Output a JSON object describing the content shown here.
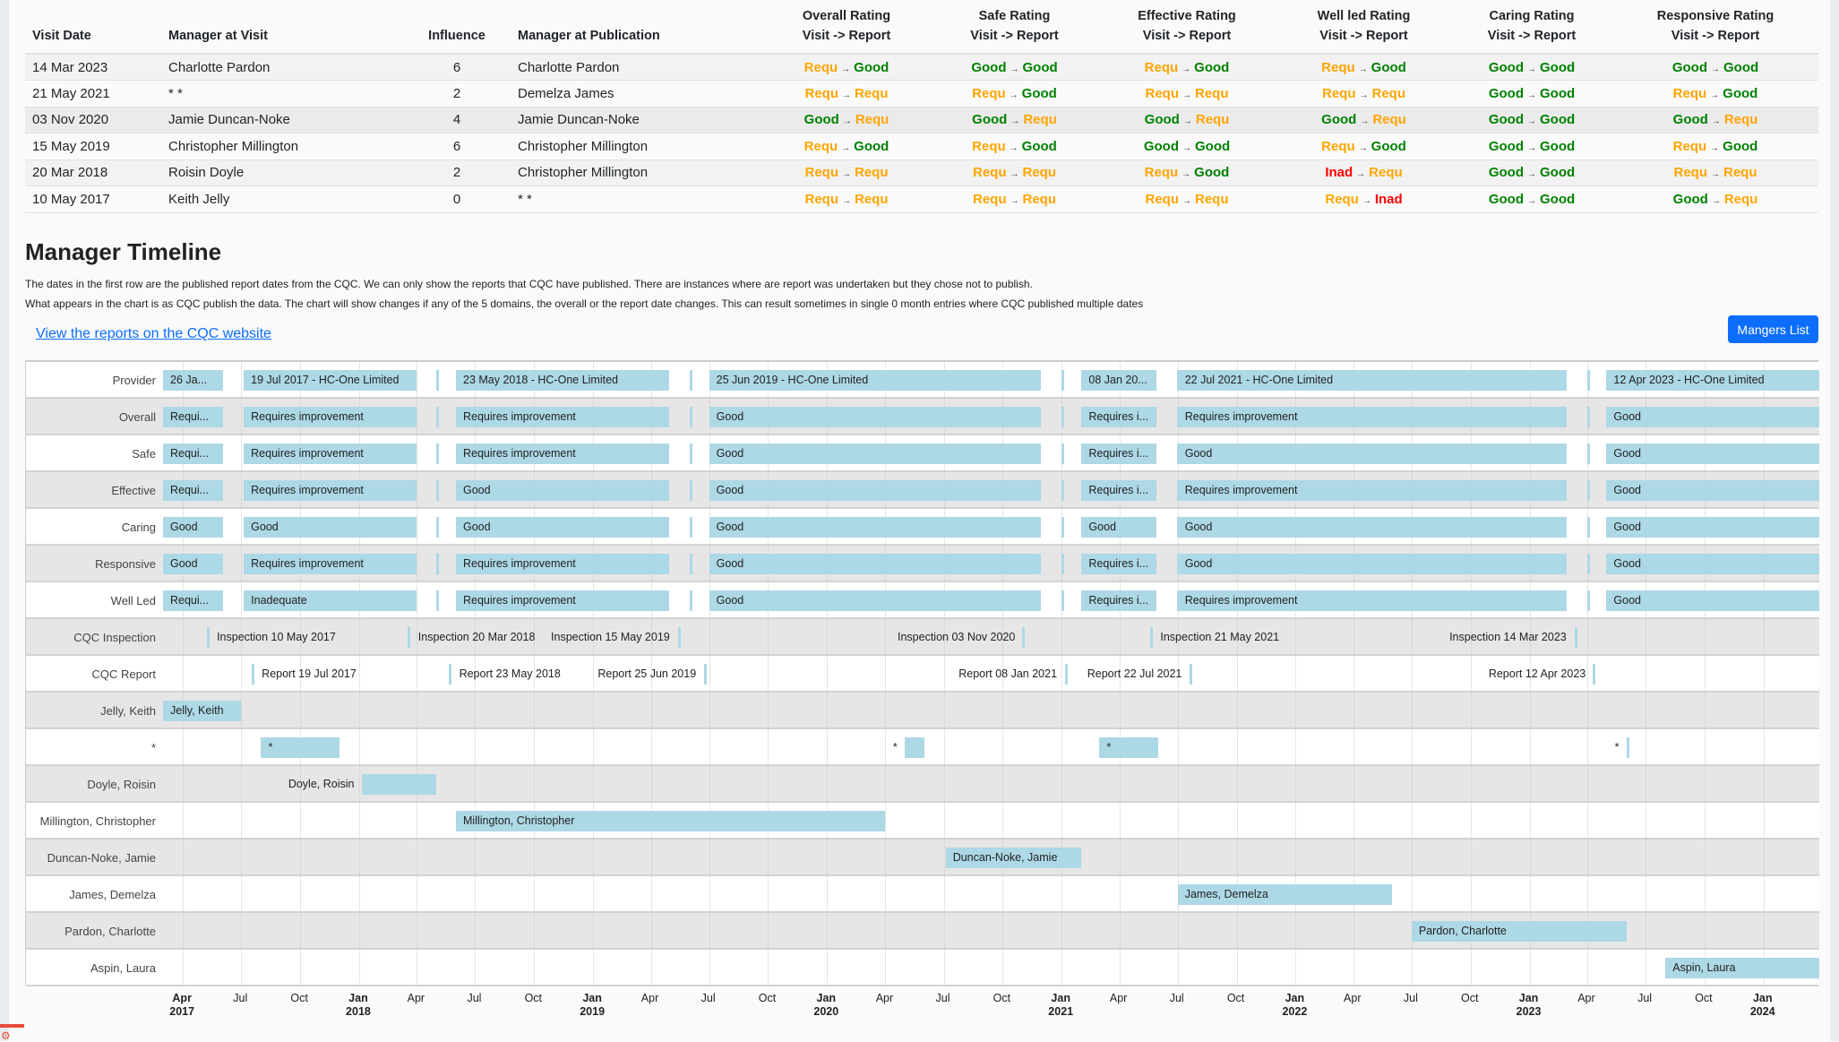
{
  "visits_table": {
    "headers": {
      "visit_date": "Visit Date",
      "manager_at_visit": "Manager at Visit",
      "influence": "Influence",
      "manager_at_publication": "Manager at Publication",
      "overall": [
        "Overall Rating",
        "Visit -> Report"
      ],
      "safe": [
        "Safe Rating",
        "Visit -> Report"
      ],
      "effective": [
        "Effective Rating",
        "Visit -> Report"
      ],
      "well_led": [
        "Well led Rating",
        "Visit -> Report"
      ],
      "caring": [
        "Caring Rating",
        "Visit -> Report"
      ],
      "responsive": [
        "Responsive Rating",
        "Visit -> Report"
      ]
    },
    "arrow": "→",
    "rows": [
      {
        "visit_date": "14 Mar 2023",
        "manager_at_visit": "Charlotte Pardon",
        "influence": "6",
        "manager_at_publication": "Charlotte Pardon",
        "overall": [
          "Requ",
          "Good"
        ],
        "safe": [
          "Good",
          "Good"
        ],
        "effective": [
          "Requ",
          "Good"
        ],
        "well_led": [
          "Requ",
          "Good"
        ],
        "caring": [
          "Good",
          "Good"
        ],
        "responsive": [
          "Good",
          "Good"
        ]
      },
      {
        "visit_date": "21 May 2021",
        "manager_at_visit": "* *",
        "influence": "2",
        "manager_at_publication": "Demelza James",
        "overall": [
          "Requ",
          "Requ"
        ],
        "safe": [
          "Requ",
          "Good"
        ],
        "effective": [
          "Requ",
          "Requ"
        ],
        "well_led": [
          "Requ",
          "Requ"
        ],
        "caring": [
          "Good",
          "Good"
        ],
        "responsive": [
          "Requ",
          "Good"
        ]
      },
      {
        "visit_date": "03 Nov 2020",
        "manager_at_visit": "Jamie Duncan-Noke",
        "influence": "4",
        "manager_at_publication": "Jamie Duncan-Noke",
        "overall": [
          "Good",
          "Requ"
        ],
        "safe": [
          "Good",
          "Requ"
        ],
        "effective": [
          "Good",
          "Requ"
        ],
        "well_led": [
          "Good",
          "Requ"
        ],
        "caring": [
          "Good",
          "Good"
        ],
        "responsive": [
          "Good",
          "Requ"
        ]
      },
      {
        "visit_date": "15 May 2019",
        "manager_at_visit": "Christopher Millington",
        "influence": "6",
        "manager_at_publication": "Christopher Millington",
        "overall": [
          "Requ",
          "Good"
        ],
        "safe": [
          "Requ",
          "Good"
        ],
        "effective": [
          "Good",
          "Good"
        ],
        "well_led": [
          "Requ",
          "Good"
        ],
        "caring": [
          "Good",
          "Good"
        ],
        "responsive": [
          "Requ",
          "Good"
        ]
      },
      {
        "visit_date": "20 Mar 2018",
        "manager_at_visit": "Roisin Doyle",
        "influence": "2",
        "manager_at_publication": "Christopher Millington",
        "overall": [
          "Requ",
          "Requ"
        ],
        "safe": [
          "Requ",
          "Requ"
        ],
        "effective": [
          "Requ",
          "Good"
        ],
        "well_led": [
          "Inad",
          "Requ"
        ],
        "caring": [
          "Good",
          "Good"
        ],
        "responsive": [
          "Requ",
          "Requ"
        ]
      },
      {
        "visit_date": "10 May 2017",
        "manager_at_visit": "Keith Jelly",
        "influence": "0",
        "manager_at_publication": "* *",
        "overall": [
          "Requ",
          "Requ"
        ],
        "safe": [
          "Requ",
          "Requ"
        ],
        "effective": [
          "Requ",
          "Requ"
        ],
        "well_led": [
          "Requ",
          "Inad"
        ],
        "caring": [
          "Good",
          "Good"
        ],
        "responsive": [
          "Good",
          "Requ"
        ]
      }
    ],
    "rating_colors": {
      "Requ": "#FFA500",
      "Good": "#008000",
      "Inad": "#FF0000"
    }
  },
  "timeline_section": {
    "title": "Manager Timeline",
    "note1": "The dates in the first row are the published report dates from the CQC. We can only show the reports that CQC have published. There are instances where are report was undertaken but they chose not to publish.",
    "note2": "What appears in the chart is as CQC publish the data. The chart will show changes if any of the 5 domains, the overall or the report date changes. This can result sometimes in single 0 month entries where CQC published multiple dates",
    "link_label": "View the reports on the CQC website",
    "managers_button": "Mangers List"
  },
  "chart_data": {
    "type": "timeline",
    "x_range": [
      "2017-03-01",
      "2024-03-28"
    ],
    "bar_color": "#ADD8E6",
    "periods": [
      [
        "2017-03-01",
        "2017-06-02"
      ],
      [
        "2017-07-05",
        "2018-03-31"
      ],
      [
        "2018-05-01",
        "2018-05-04"
      ],
      [
        "2018-06-01",
        "2019-04-30"
      ],
      [
        "2019-06-01",
        "2019-06-04"
      ],
      [
        "2019-07-01",
        "2020-11-30"
      ],
      [
        "2021-01-01",
        "2021-01-04"
      ],
      [
        "2021-02-01",
        "2021-05-29"
      ],
      [
        "2021-06-30",
        "2021-07-03"
      ],
      [
        "2021-07-01",
        "2023-02-28"
      ],
      [
        "2023-04-01",
        "2023-04-04"
      ],
      [
        "2023-05-01",
        "2024-03-28"
      ]
    ],
    "rating_rows": [
      {
        "label": "Provider",
        "values": [
          "26 Ja...",
          "19 Jul 2017 - HC-One Limited",
          "",
          "23 May 2018 - HC-One Limited",
          "",
          "25 Jun 2019 - HC-One Limited",
          "",
          "08 Jan 20...",
          "",
          "22 Jul 2021 - HC-One Limited",
          "",
          "12 Apr 2023 - HC-One Limited"
        ]
      },
      {
        "label": "Overall",
        "values": [
          "Requi...",
          "Requires improvement",
          "",
          "Requires improvement",
          "",
          "Good",
          "",
          "Requires i...",
          "",
          "Requires improvement",
          "",
          "Good"
        ]
      },
      {
        "label": "Safe",
        "values": [
          "Requi...",
          "Requires improvement",
          "",
          "Requires improvement",
          "",
          "Good",
          "",
          "Requires i...",
          "",
          "Good",
          "",
          "Good"
        ]
      },
      {
        "label": "Effective",
        "values": [
          "Requi...",
          "Requires improvement",
          "",
          "Good",
          "",
          "Good",
          "",
          "Requires i...",
          "",
          "Requires improvement",
          "",
          "Good"
        ]
      },
      {
        "label": "Caring",
        "values": [
          "Good",
          "Good",
          "",
          "Good",
          "",
          "Good",
          "",
          "Good",
          "",
          "Good",
          "",
          "Good"
        ]
      },
      {
        "label": "Responsive",
        "values": [
          "Good",
          "Requires improvement",
          "",
          "Requires improvement",
          "",
          "Good",
          "",
          "Requires i...",
          "",
          "Good",
          "",
          "Good"
        ]
      },
      {
        "label": "Well Led",
        "values": [
          "Requi...",
          "Inadequate",
          "",
          "Requires improvement",
          "",
          "Good",
          "",
          "Requires i...",
          "",
          "Requires improvement",
          "",
          "Good"
        ]
      }
    ],
    "marker_rows": [
      {
        "label": "CQC Inspection",
        "markers": [
          {
            "date": "2017-05-10",
            "text": "Inspection 10 May 2017"
          },
          {
            "date": "2018-03-20",
            "text": "Inspection 20 Mar 2018"
          },
          {
            "date": "2019-05-15",
            "text": "Inspection 15 May 2019"
          },
          {
            "date": "2020-11-03",
            "text": "Inspection 03 Nov 2020"
          },
          {
            "date": "2021-05-21",
            "text": "Inspection 21 May 2021"
          },
          {
            "date": "2023-03-14",
            "text": "Inspection 14 Mar 2023"
          }
        ]
      },
      {
        "label": "CQC Report",
        "markers": [
          {
            "date": "2017-07-19",
            "text": "Report 19 Jul 2017"
          },
          {
            "date": "2018-05-23",
            "text": "Report 23 May 2018"
          },
          {
            "date": "2019-06-25",
            "text": "Report 25 Jun 2019"
          },
          {
            "date": "2021-01-08",
            "text": "Report 08 Jan 2021"
          },
          {
            "date": "2021-07-22",
            "text": "Report 22 Jul 2021"
          },
          {
            "date": "2023-04-12",
            "text": "Report 12 Apr 2023"
          }
        ]
      }
    ],
    "manager_rows": [
      {
        "label": "Jelly, Keith",
        "bars": [
          {
            "start": "2017-03-01",
            "end": "2017-07-01",
            "text": "Jelly, Keith"
          }
        ]
      },
      {
        "label": "*",
        "bars": [
          {
            "start": "2017-08-01",
            "end": "2017-12-01",
            "text": "*"
          },
          {
            "start": "2020-05-01",
            "end": "2020-06-01",
            "text": "*"
          },
          {
            "start": "2021-03-01",
            "end": "2021-06-01",
            "text": "*"
          },
          {
            "start": "2023-06-01",
            "end": "2023-06-03",
            "text": "*"
          }
        ]
      },
      {
        "label": "Doyle, Roisin",
        "bars": [
          {
            "start": "2018-01-05",
            "end": "2018-05-01",
            "text": "Doyle, Roisin"
          }
        ]
      },
      {
        "label": "Millington, Christopher",
        "bars": [
          {
            "start": "2018-06-01",
            "end": "2020-04-01",
            "text": "Millington, Christopher"
          }
        ]
      },
      {
        "label": "Duncan-Noke, Jamie",
        "bars": [
          {
            "start": "2020-07-04",
            "end": "2021-02-01",
            "text": "Duncan-Noke, Jamie"
          }
        ]
      },
      {
        "label": "James, Demelza",
        "bars": [
          {
            "start": "2021-07-01",
            "end": "2022-06-01",
            "text": "James, Demelza"
          }
        ]
      },
      {
        "label": "Pardon, Charlotte",
        "bars": [
          {
            "start": "2022-07-01",
            "end": "2023-06-01",
            "text": "Pardon, Charlotte"
          }
        ]
      },
      {
        "label": "Aspin, Laura",
        "bars": [
          {
            "start": "2023-08-01",
            "end": "2024-03-28",
            "text": "Aspin, Laura"
          }
        ]
      }
    ],
    "x_ticks": [
      {
        "date": "2017-04-01",
        "month": "Apr",
        "year": "2017"
      },
      {
        "date": "2017-07-01",
        "month": "Jul"
      },
      {
        "date": "2017-10-01",
        "month": "Oct"
      },
      {
        "date": "2018-01-01",
        "month": "Jan",
        "year": "2018"
      },
      {
        "date": "2018-04-01",
        "month": "Apr"
      },
      {
        "date": "2018-07-01",
        "month": "Jul"
      },
      {
        "date": "2018-10-01",
        "month": "Oct"
      },
      {
        "date": "2019-01-01",
        "month": "Jan",
        "year": "2019"
      },
      {
        "date": "2019-04-01",
        "month": "Apr"
      },
      {
        "date": "2019-07-01",
        "month": "Jul"
      },
      {
        "date": "2019-10-01",
        "month": "Oct"
      },
      {
        "date": "2020-01-01",
        "month": "Jan",
        "year": "2020"
      },
      {
        "date": "2020-04-01",
        "month": "Apr"
      },
      {
        "date": "2020-07-01",
        "month": "Jul"
      },
      {
        "date": "2020-10-01",
        "month": "Oct"
      },
      {
        "date": "2021-01-01",
        "month": "Jan",
        "year": "2021"
      },
      {
        "date": "2021-04-01",
        "month": "Apr"
      },
      {
        "date": "2021-07-01",
        "month": "Jul"
      },
      {
        "date": "2021-10-01",
        "month": "Oct"
      },
      {
        "date": "2022-01-01",
        "month": "Jan",
        "year": "2022"
      },
      {
        "date": "2022-04-01",
        "month": "Apr"
      },
      {
        "date": "2022-07-01",
        "month": "Jul"
      },
      {
        "date": "2022-10-01",
        "month": "Oct"
      },
      {
        "date": "2023-01-01",
        "month": "Jan",
        "year": "2023"
      },
      {
        "date": "2023-04-01",
        "month": "Apr"
      },
      {
        "date": "2023-07-01",
        "month": "Jul"
      },
      {
        "date": "2023-10-01",
        "month": "Oct"
      },
      {
        "date": "2024-01-01",
        "month": "Jan",
        "year": "2024"
      }
    ],
    "grid": true
  }
}
